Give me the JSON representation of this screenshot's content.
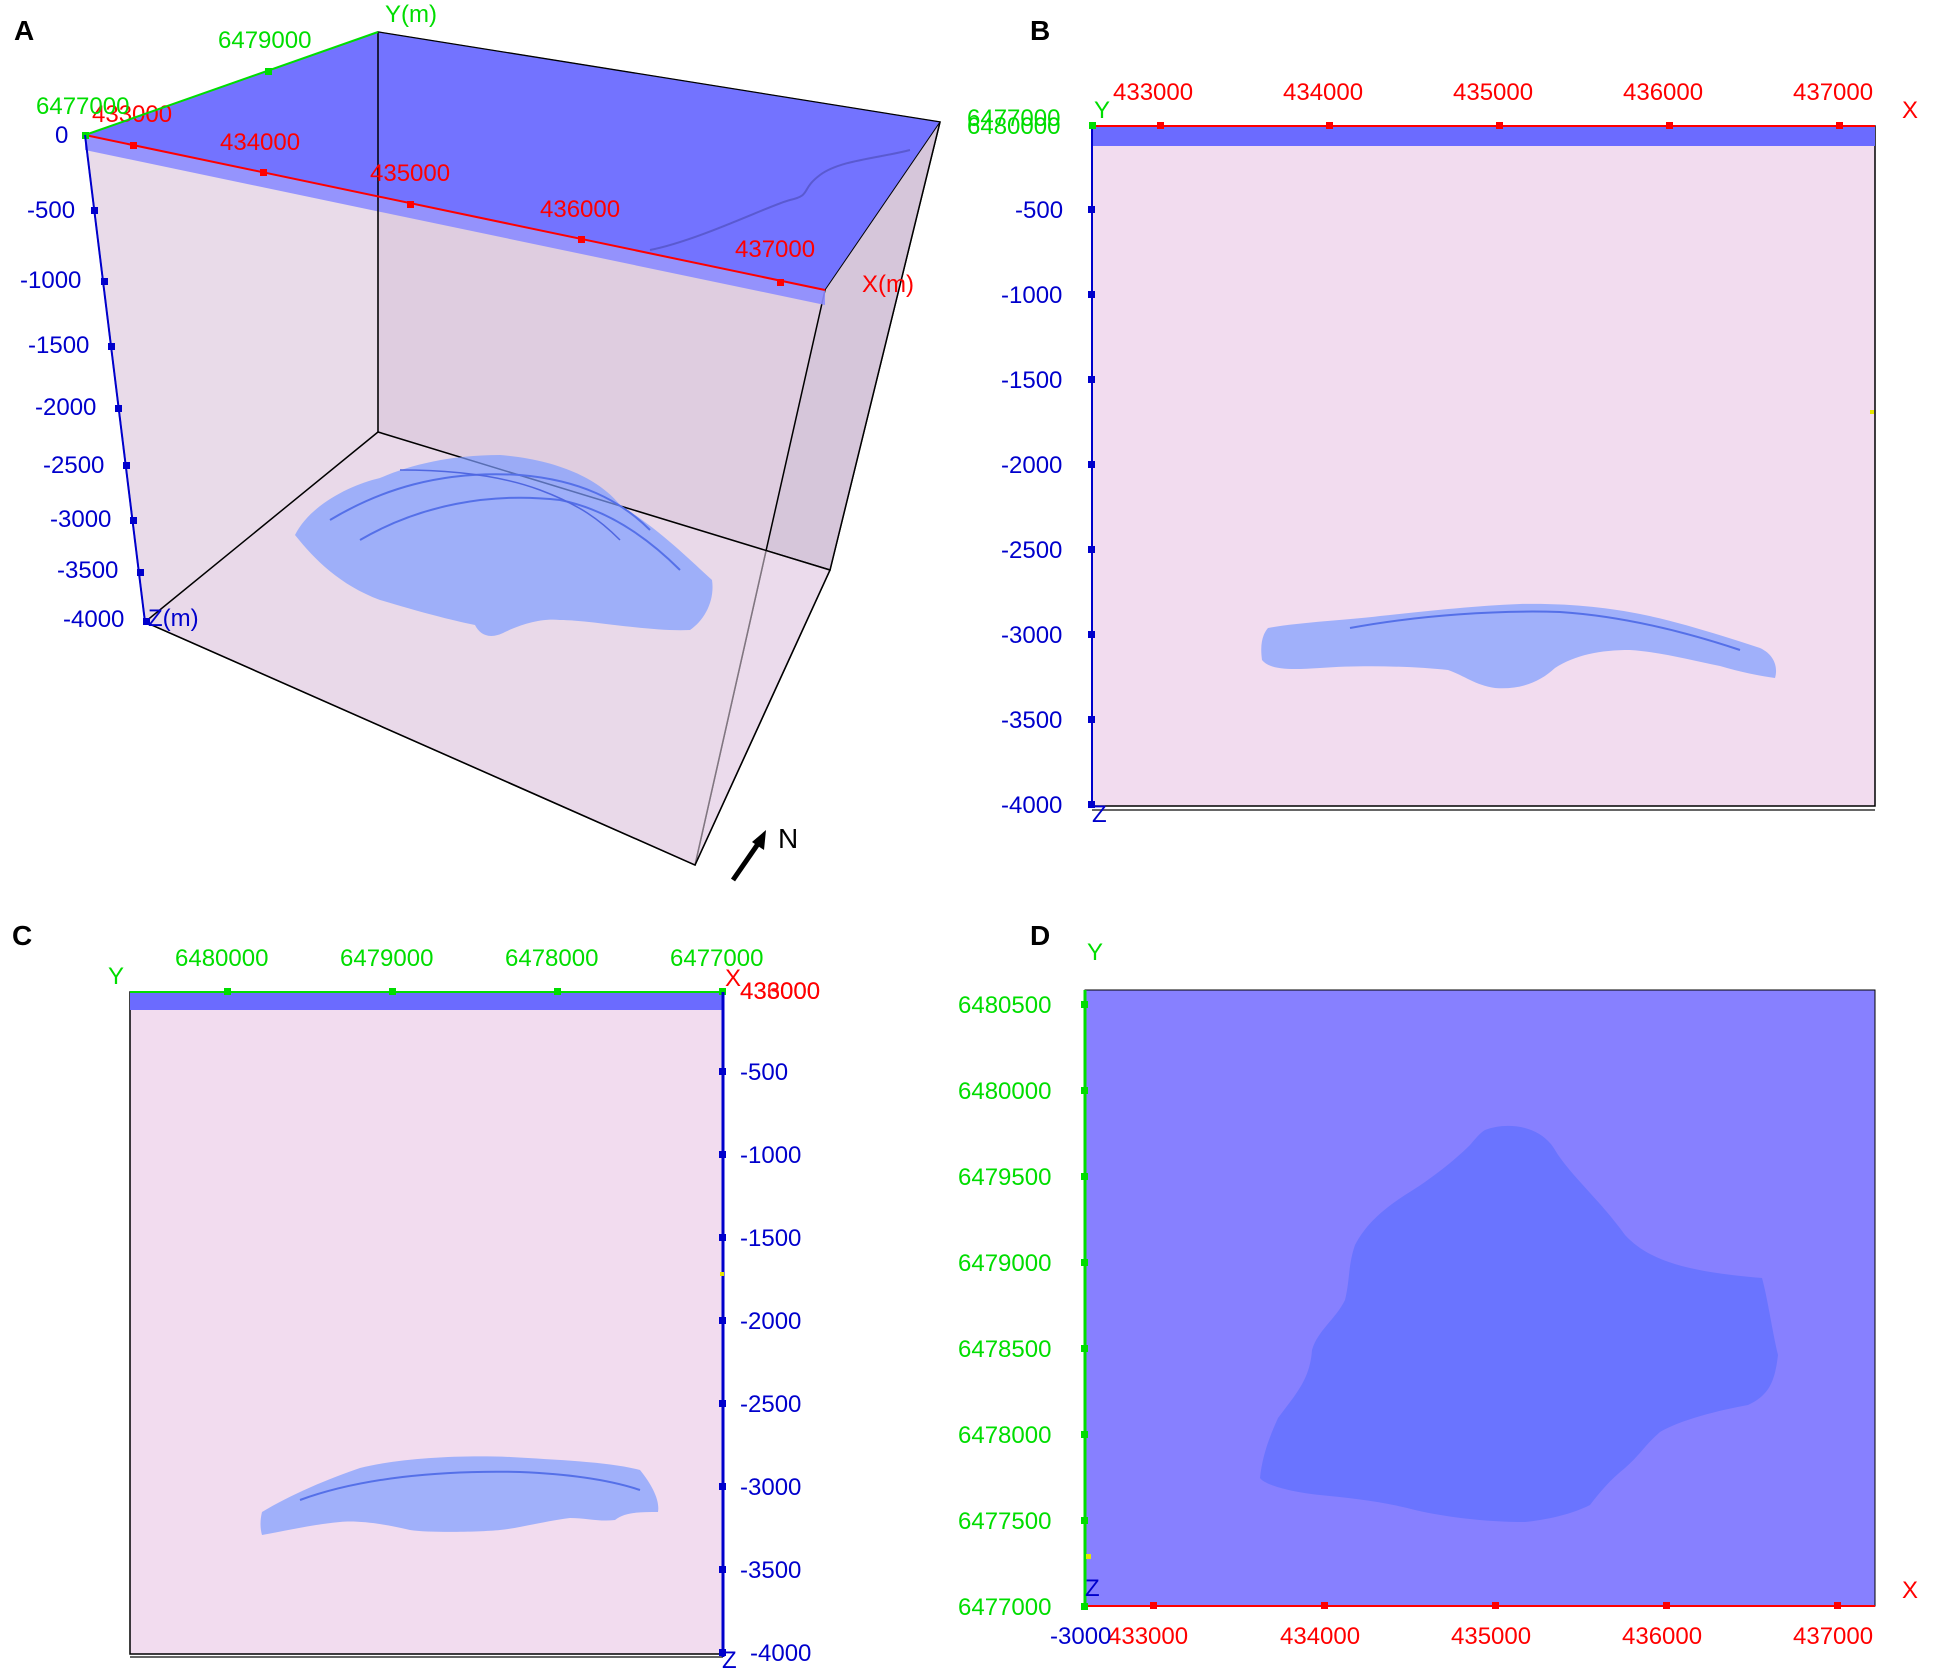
{
  "colors": {
    "x_axis": "#ff0000",
    "y_axis": "#00dd00",
    "z_axis": "#0000cc",
    "volume_fill": "#f2dcef",
    "surface_layer": "#6b6bff",
    "body_fill": "#6b8cff",
    "plan_background": "#8780ff",
    "plan_body": "#6a74ff"
  },
  "panels": [
    {
      "id": "A",
      "letter": "A",
      "view": "3d-perspective",
      "x_ticks": [
        "433000",
        "434000",
        "435000",
        "436000",
        "437000"
      ],
      "y_ticks": [
        "6477000",
        "6479000"
      ],
      "z_ticks": [
        "0",
        "-500",
        "-1000",
        "-1500",
        "-2000",
        "-2500",
        "-3000",
        "-3500",
        "-4000"
      ],
      "x_axis_label": "X(m)",
      "y_axis_label": "Y(m)",
      "z_axis_label": "Z(m)",
      "north_label": "N",
      "north_arrow_icon": "north-arrow-icon"
    },
    {
      "id": "B",
      "letter": "B",
      "view": "front-xz",
      "x_ticks": [
        "433000",
        "434000",
        "435000",
        "436000",
        "437000"
      ],
      "z_ticks": [
        "-500",
        "-1000",
        "-1500",
        "-2000",
        "-2500",
        "-3000",
        "-3500",
        "-4000"
      ],
      "x_axis_label": "X",
      "y_axis_label": "Y",
      "z_axis_label": "Z",
      "corner_labels": [
        "6477000",
        "6480000"
      ]
    },
    {
      "id": "C",
      "letter": "C",
      "view": "side-yz",
      "y_ticks": [
        "6480000",
        "6479000",
        "6478000",
        "6477000"
      ],
      "z_ticks": [
        "-500",
        "-1000",
        "-1500",
        "-2000",
        "-2500",
        "-3000",
        "-3500",
        "-4000"
      ],
      "x_axis_label": "X",
      "y_axis_label": "Y",
      "z_axis_label": "Z",
      "corner_labels": [
        "433000",
        "436000"
      ]
    },
    {
      "id": "D",
      "letter": "D",
      "view": "plan-xy",
      "x_ticks": [
        "433000",
        "434000",
        "435000",
        "436000",
        "437000"
      ],
      "y_ticks": [
        "6480500",
        "6480000",
        "6479500",
        "6479000",
        "6478500",
        "6478000",
        "6477500",
        "6477000"
      ],
      "x_axis_label": "X",
      "y_axis_label": "Y",
      "z_axis_label": "Z",
      "corner_label": "-3000"
    }
  ]
}
